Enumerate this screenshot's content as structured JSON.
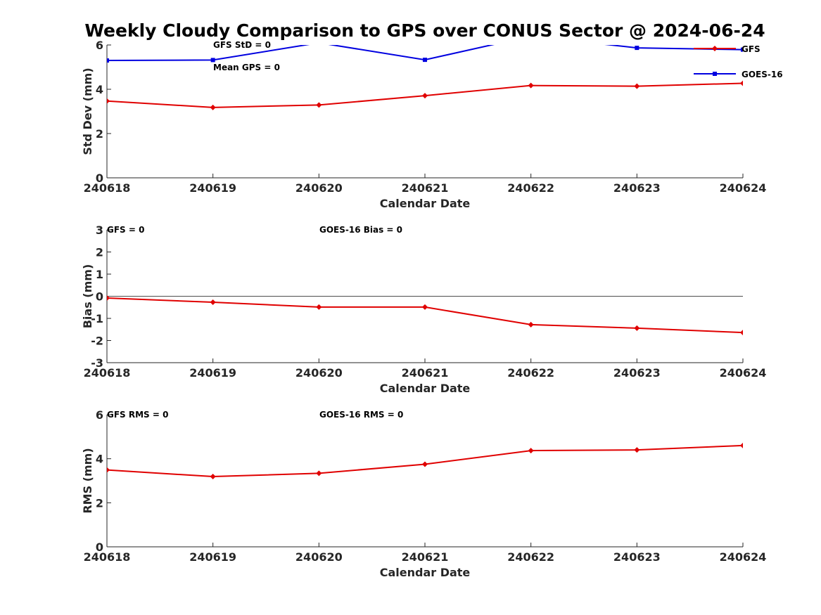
{
  "title": "Weekly Cloudy Comparison to GPS over CONUS Sector @ 2024-06-24",
  "chart_data": [
    {
      "type": "line",
      "panel": "std",
      "xlabel": "Calendar Date",
      "ylabel": "Std Dev (mm)",
      "categories": [
        "240618",
        "240619",
        "240620",
        "240621",
        "240622",
        "240623",
        "240624"
      ],
      "ylim": [
        0,
        6
      ],
      "yticks": [
        "0",
        "2",
        "4",
        "6"
      ],
      "legend": {
        "placement": "top-right",
        "entries": [
          "GFS",
          "GOES-16"
        ]
      },
      "annotations": [
        "GFS StD = 0",
        "Mean GPS = 0"
      ],
      "series": [
        {
          "name": "GFS",
          "color": "#e00000",
          "marker": "diamond",
          "values": [
            3.47,
            3.18,
            3.29,
            3.71,
            4.17,
            4.14,
            4.27
          ]
        },
        {
          "name": "GOES-16",
          "color": "#0000e0",
          "marker": "square",
          "values": [
            5.3,
            5.32,
            6.1,
            5.33,
            6.4,
            5.87,
            5.79
          ]
        }
      ]
    },
    {
      "type": "line",
      "panel": "bias",
      "xlabel": "Calendar Date",
      "ylabel": "Bias (mm)",
      "categories": [
        "240618",
        "240619",
        "240620",
        "240621",
        "240622",
        "240623",
        "240624"
      ],
      "ylim": [
        -3,
        3
      ],
      "yticks": [
        "-3",
        "-2",
        "-1",
        "0",
        "1",
        "2",
        "3"
      ],
      "zero_line": true,
      "annotations": [
        "GFS = 0",
        "GOES-16 Bias  = 0"
      ],
      "series": [
        {
          "name": "GFS",
          "color": "#e00000",
          "marker": "diamond",
          "values": [
            -0.08,
            -0.27,
            -0.49,
            -0.49,
            -1.28,
            -1.44,
            -1.64
          ]
        }
      ]
    },
    {
      "type": "line",
      "panel": "rms",
      "xlabel": "Calendar Date",
      "ylabel": "RMS (mm)",
      "categories": [
        "240618",
        "240619",
        "240620",
        "240621",
        "240622",
        "240623",
        "240624"
      ],
      "ylim": [
        0,
        6
      ],
      "yticks": [
        "0",
        "2",
        "4",
        "6"
      ],
      "annotations": [
        "GFS RMS = 0",
        "GOES-16 RMS = 0"
      ],
      "series": [
        {
          "name": "GFS",
          "color": "#e00000",
          "marker": "diamond",
          "values": [
            3.49,
            3.19,
            3.34,
            3.75,
            4.37,
            4.4,
            4.6
          ]
        }
      ]
    }
  ]
}
